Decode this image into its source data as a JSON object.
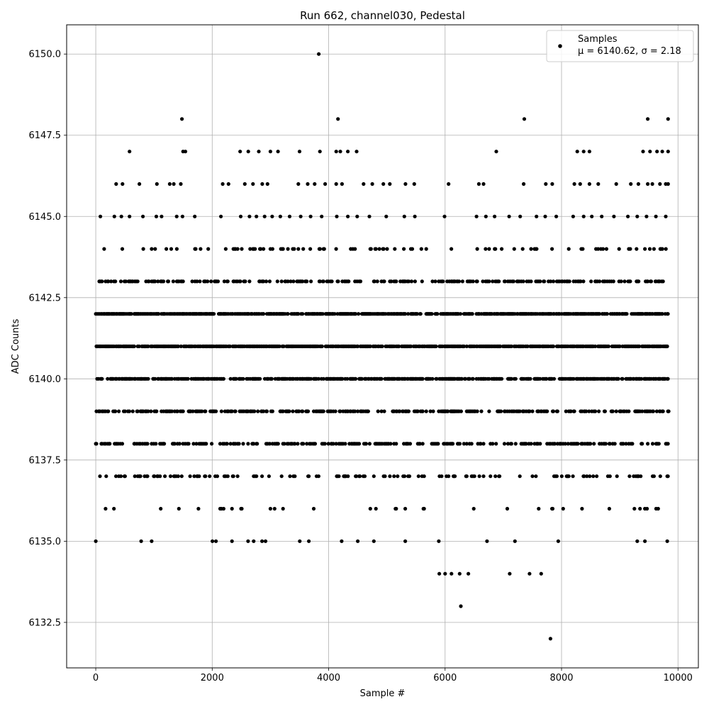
{
  "chart_data": {
    "type": "scatter",
    "title": "Run 662, channel030, Pedestal",
    "xlabel": "Sample #",
    "ylabel": "ADC Counts",
    "xlim": [
      -500,
      10350
    ],
    "ylim": [
      6131.1,
      6150.9
    ],
    "xticks": [
      0,
      2000,
      4000,
      6000,
      8000,
      10000
    ],
    "yticks": [
      6132.5,
      6135.0,
      6137.5,
      6140.0,
      6142.5,
      6145.0,
      6147.5,
      6150.0
    ],
    "xtick_labels": [
      "0",
      "2000",
      "4000",
      "6000",
      "8000",
      "10000"
    ],
    "ytick_labels": [
      "6132.5",
      "6135.0",
      "6137.5",
      "6140.0",
      "6142.5",
      "6145.0",
      "6147.5",
      "6150.0"
    ],
    "grid": true,
    "legend_position": "top-right",
    "series": [
      {
        "name": "Samples",
        "color": "#000000",
        "points": [
          [
            3830,
            6150
          ],
          [
            1480,
            6148
          ],
          [
            4160,
            6148
          ],
          [
            7360,
            6148
          ],
          [
            9480,
            6148
          ],
          [
            9830,
            6148
          ],
          [
            580,
            6147
          ],
          [
            1500,
            6147
          ],
          [
            1540,
            6147
          ],
          [
            2480,
            6147
          ],
          [
            2620,
            6147
          ],
          [
            2800,
            6147
          ],
          [
            3000,
            6147
          ],
          [
            3130,
            6147
          ],
          [
            3500,
            6147
          ],
          [
            3850,
            6147
          ],
          [
            4130,
            6147
          ],
          [
            4200,
            6147
          ],
          [
            4330,
            6147
          ],
          [
            4480,
            6147
          ],
          [
            6880,
            6147
          ],
          [
            8270,
            6147
          ],
          [
            8380,
            6147
          ],
          [
            8480,
            6147
          ],
          [
            9400,
            6147
          ],
          [
            9520,
            6147
          ],
          [
            9640,
            6147
          ],
          [
            9730,
            6147
          ],
          [
            9830,
            6147
          ],
          [
            350,
            6146
          ],
          [
            460,
            6146
          ],
          [
            750,
            6146
          ],
          [
            1050,
            6146
          ],
          [
            1270,
            6146
          ],
          [
            1340,
            6146
          ],
          [
            1460,
            6146
          ],
          [
            2180,
            6146
          ],
          [
            2280,
            6146
          ],
          [
            2560,
            6146
          ],
          [
            2700,
            6146
          ],
          [
            2860,
            6146
          ],
          [
            2950,
            6146
          ],
          [
            3480,
            6146
          ],
          [
            3640,
            6146
          ],
          [
            3760,
            6146
          ],
          [
            3940,
            6146
          ],
          [
            4130,
            6146
          ],
          [
            4230,
            6146
          ],
          [
            4600,
            6146
          ],
          [
            4750,
            6146
          ],
          [
            4940,
            6146
          ],
          [
            5050,
            6146
          ],
          [
            5320,
            6146
          ],
          [
            5470,
            6146
          ],
          [
            6060,
            6146
          ],
          [
            6580,
            6146
          ],
          [
            6660,
            6146
          ],
          [
            7350,
            6146
          ],
          [
            7730,
            6146
          ],
          [
            7840,
            6146
          ],
          [
            8220,
            6146
          ],
          [
            8320,
            6146
          ],
          [
            8480,
            6146
          ],
          [
            8630,
            6146
          ],
          [
            8940,
            6146
          ],
          [
            9190,
            6146
          ],
          [
            9320,
            6146
          ],
          [
            9480,
            6146
          ],
          [
            9560,
            6146
          ],
          [
            9690,
            6146
          ],
          [
            9790,
            6146
          ],
          [
            9830,
            6146
          ],
          [
            80,
            6145
          ],
          [
            320,
            6145
          ],
          [
            440,
            6145
          ],
          [
            580,
            6145
          ],
          [
            810,
            6145
          ],
          [
            1040,
            6145
          ],
          [
            1130,
            6145
          ],
          [
            1390,
            6145
          ],
          [
            1490,
            6145
          ],
          [
            1700,
            6145
          ],
          [
            2150,
            6145
          ],
          [
            2490,
            6145
          ],
          [
            2640,
            6145
          ],
          [
            2760,
            6145
          ],
          [
            2900,
            6145
          ],
          [
            3030,
            6145
          ],
          [
            3170,
            6145
          ],
          [
            3330,
            6145
          ],
          [
            3520,
            6145
          ],
          [
            3690,
            6145
          ],
          [
            3880,
            6145
          ],
          [
            4140,
            6145
          ],
          [
            4330,
            6145
          ],
          [
            4490,
            6145
          ],
          [
            4700,
            6145
          ],
          [
            4990,
            6145
          ],
          [
            5300,
            6145
          ],
          [
            5480,
            6145
          ],
          [
            5990,
            6145
          ],
          [
            6540,
            6145
          ],
          [
            6700,
            6145
          ],
          [
            6850,
            6145
          ],
          [
            7100,
            6145
          ],
          [
            7290,
            6145
          ],
          [
            7570,
            6145
          ],
          [
            7720,
            6145
          ],
          [
            7910,
            6145
          ],
          [
            8200,
            6145
          ],
          [
            8380,
            6145
          ],
          [
            8520,
            6145
          ],
          [
            8690,
            6145
          ],
          [
            8900,
            6145
          ],
          [
            9140,
            6145
          ],
          [
            9300,
            6145
          ],
          [
            9460,
            6145
          ],
          [
            9620,
            6145
          ],
          [
            9790,
            6145
          ],
          [
            5900,
            6134
          ],
          [
            6000,
            6134
          ],
          [
            6110,
            6134
          ],
          [
            6250,
            6134
          ],
          [
            6400,
            6134
          ],
          [
            7110,
            6134
          ],
          [
            7450,
            6134
          ],
          [
            7650,
            6134
          ],
          [
            6270,
            6133
          ],
          [
            7810,
            6132
          ]
        ]
      }
    ],
    "legend": {
      "series_label": "Samples",
      "stats_label": "μ = 6140.62, σ = 2.18"
    }
  }
}
